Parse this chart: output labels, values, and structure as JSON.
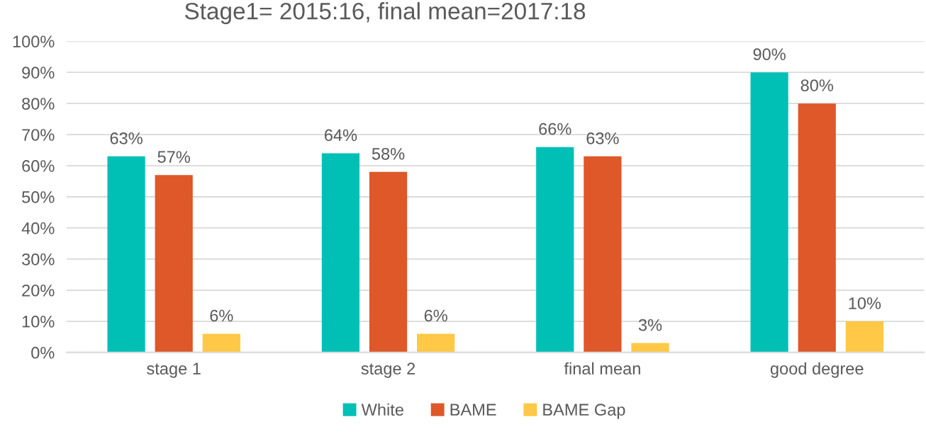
{
  "chart_data": {
    "type": "bar",
    "title": "Stage1= 2015:16, final mean=2017:18",
    "categories": [
      "stage 1",
      "stage 2",
      "final mean",
      "good degree"
    ],
    "series": [
      {
        "name": "White",
        "color": "#00c0b5",
        "values": [
          63,
          64,
          66,
          90
        ],
        "value_labels": [
          "63%",
          "64%",
          "66%",
          "90%"
        ]
      },
      {
        "name": "BAME",
        "color": "#de5829",
        "values": [
          57,
          58,
          63,
          80
        ],
        "value_labels": [
          "57%",
          "58%",
          "63%",
          "80%"
        ]
      },
      {
        "name": "BAME Gap",
        "color": "#ffc846",
        "values": [
          6,
          6,
          3,
          10
        ],
        "value_labels": [
          "6%",
          "6%",
          "3%",
          "10%"
        ]
      }
    ],
    "ylim": [
      0,
      100
    ],
    "yticks": [
      {
        "value": 0,
        "label": "0%"
      },
      {
        "value": 10,
        "label": "10%"
      },
      {
        "value": 20,
        "label": "20%"
      },
      {
        "value": 30,
        "label": "30%"
      },
      {
        "value": 40,
        "label": "40%"
      },
      {
        "value": 50,
        "label": "50%"
      },
      {
        "value": 60,
        "label": "60%"
      },
      {
        "value": 70,
        "label": "70%"
      },
      {
        "value": 80,
        "label": "80%"
      },
      {
        "value": 90,
        "label": "90%"
      },
      {
        "value": 100,
        "label": "100%"
      }
    ],
    "grid": "y",
    "legend": "bottom"
  }
}
